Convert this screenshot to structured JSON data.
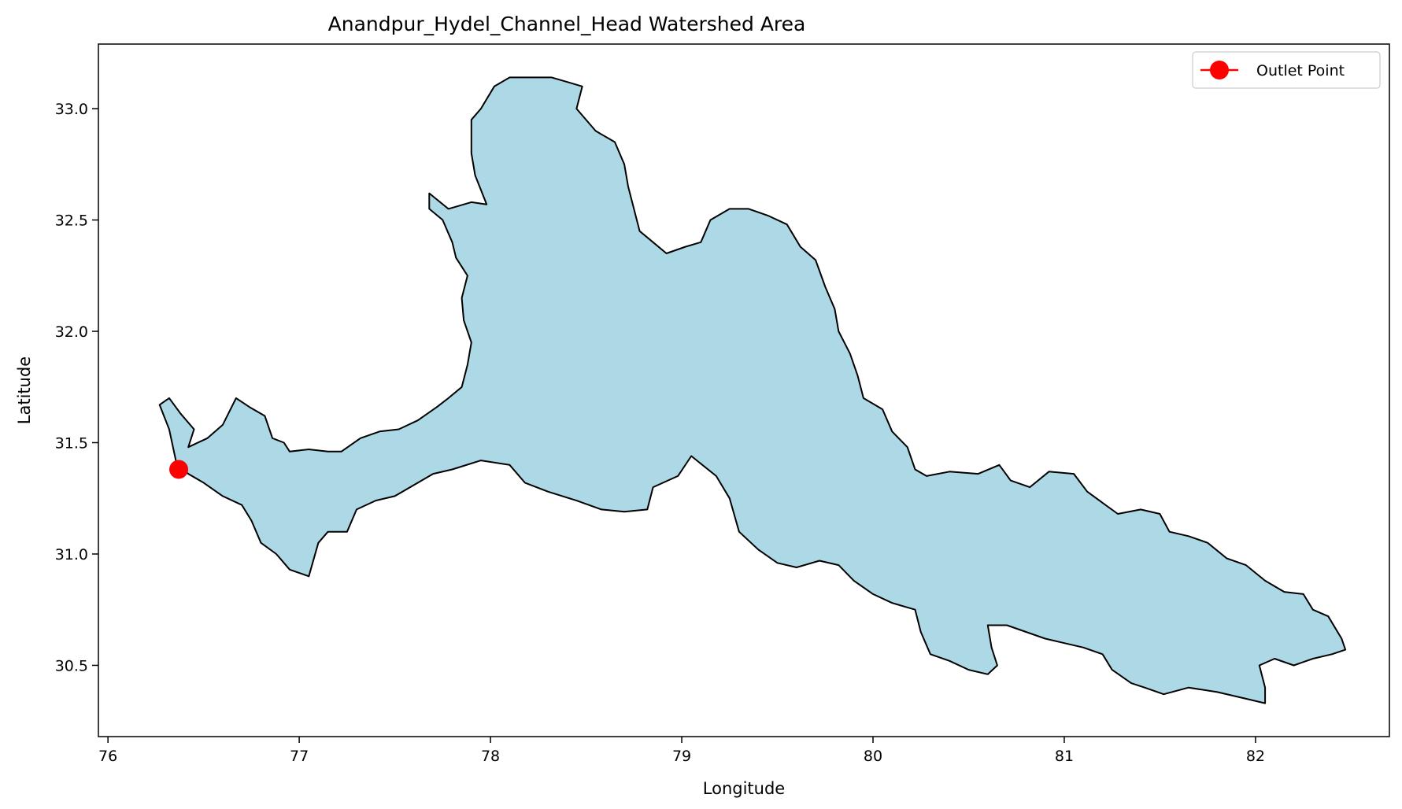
{
  "chart_data": {
    "type": "map",
    "title": "Anandpur_Hydel_Channel_Head Watershed Area",
    "xlabel": "Longitude",
    "ylabel": "Latitude",
    "xlim": [
      75.95,
      82.7
    ],
    "ylim": [
      30.18,
      33.29
    ],
    "x_ticks": [
      76,
      77,
      78,
      79,
      80,
      81,
      82
    ],
    "y_ticks": [
      30.5,
      31.0,
      31.5,
      32.0,
      32.5,
      33.0
    ],
    "y_tick_labels": [
      "30.5",
      "31.0",
      "31.5",
      "32.0",
      "32.5",
      "33.0"
    ],
    "grid": false,
    "legend": {
      "placement": "top-right",
      "entries": [
        "Outlet Point"
      ]
    },
    "watershed": {
      "fill": "#add8e6",
      "edge": "#000000",
      "boundary": [
        [
          76.27,
          31.67
        ],
        [
          76.32,
          31.7
        ],
        [
          76.38,
          31.63
        ],
        [
          76.45,
          31.56
        ],
        [
          76.42,
          31.48
        ],
        [
          76.52,
          31.52
        ],
        [
          76.6,
          31.58
        ],
        [
          76.67,
          31.7
        ],
        [
          76.74,
          31.66
        ],
        [
          76.82,
          31.62
        ],
        [
          76.86,
          31.52
        ],
        [
          76.92,
          31.5
        ],
        [
          76.95,
          31.46
        ],
        [
          77.05,
          31.47
        ],
        [
          77.15,
          31.46
        ],
        [
          77.22,
          31.46
        ],
        [
          77.32,
          31.52
        ],
        [
          77.42,
          31.55
        ],
        [
          77.52,
          31.56
        ],
        [
          77.62,
          31.6
        ],
        [
          77.72,
          31.66
        ],
        [
          77.78,
          31.7
        ],
        [
          77.85,
          31.75
        ],
        [
          77.88,
          31.85
        ],
        [
          77.9,
          31.95
        ],
        [
          77.86,
          32.05
        ],
        [
          77.85,
          32.15
        ],
        [
          77.88,
          32.25
        ],
        [
          77.82,
          32.33
        ],
        [
          77.8,
          32.4
        ],
        [
          77.75,
          32.5
        ],
        [
          77.68,
          32.55
        ],
        [
          77.68,
          32.62
        ],
        [
          77.78,
          32.55
        ],
        [
          77.9,
          32.58
        ],
        [
          77.98,
          32.57
        ],
        [
          77.92,
          32.7
        ],
        [
          77.9,
          32.8
        ],
        [
          77.9,
          32.95
        ],
        [
          77.95,
          33.0
        ],
        [
          78.02,
          33.1
        ],
        [
          78.1,
          33.14
        ],
        [
          78.22,
          33.14
        ],
        [
          78.32,
          33.14
        ],
        [
          78.4,
          33.12
        ],
        [
          78.48,
          33.1
        ],
        [
          78.45,
          33.0
        ],
        [
          78.55,
          32.9
        ],
        [
          78.65,
          32.85
        ],
        [
          78.7,
          32.75
        ],
        [
          78.72,
          32.65
        ],
        [
          78.75,
          32.55
        ],
        [
          78.78,
          32.45
        ],
        [
          78.85,
          32.4
        ],
        [
          78.92,
          32.35
        ],
        [
          79.02,
          32.38
        ],
        [
          79.1,
          32.4
        ],
        [
          79.15,
          32.5
        ],
        [
          79.25,
          32.55
        ],
        [
          79.35,
          32.55
        ],
        [
          79.45,
          32.52
        ],
        [
          79.55,
          32.48
        ],
        [
          79.62,
          32.38
        ],
        [
          79.7,
          32.32
        ],
        [
          79.75,
          32.2
        ],
        [
          79.8,
          32.1
        ],
        [
          79.82,
          32.0
        ],
        [
          79.88,
          31.9
        ],
        [
          79.92,
          31.8
        ],
        [
          79.95,
          31.7
        ],
        [
          80.05,
          31.65
        ],
        [
          80.1,
          31.55
        ],
        [
          80.18,
          31.48
        ],
        [
          80.22,
          31.38
        ],
        [
          80.28,
          31.35
        ],
        [
          80.4,
          31.37
        ],
        [
          80.55,
          31.36
        ],
        [
          80.66,
          31.4
        ],
        [
          80.72,
          31.33
        ],
        [
          80.82,
          31.3
        ],
        [
          80.92,
          31.37
        ],
        [
          81.05,
          31.36
        ],
        [
          81.12,
          31.28
        ],
        [
          81.2,
          31.23
        ],
        [
          81.28,
          31.18
        ],
        [
          81.4,
          31.2
        ],
        [
          81.5,
          31.18
        ],
        [
          81.55,
          31.1
        ],
        [
          81.65,
          31.08
        ],
        [
          81.75,
          31.05
        ],
        [
          81.85,
          30.98
        ],
        [
          81.95,
          30.95
        ],
        [
          82.05,
          30.88
        ],
        [
          82.15,
          30.83
        ],
        [
          82.25,
          30.82
        ],
        [
          82.3,
          30.75
        ],
        [
          82.38,
          30.72
        ],
        [
          82.45,
          30.62
        ],
        [
          82.47,
          30.57
        ],
        [
          82.4,
          30.55
        ],
        [
          82.3,
          30.53
        ],
        [
          82.2,
          30.5
        ],
        [
          82.1,
          30.53
        ],
        [
          82.02,
          30.5
        ],
        [
          82.05,
          30.4
        ],
        [
          82.05,
          30.33
        ],
        [
          81.95,
          30.35
        ],
        [
          81.8,
          30.38
        ],
        [
          81.65,
          30.4
        ],
        [
          81.52,
          30.37
        ],
        [
          81.42,
          30.4
        ],
        [
          81.35,
          30.42
        ],
        [
          81.25,
          30.48
        ],
        [
          81.2,
          30.55
        ],
        [
          81.1,
          30.58
        ],
        [
          81.0,
          30.6
        ],
        [
          80.9,
          30.62
        ],
        [
          80.8,
          30.65
        ],
        [
          80.7,
          30.68
        ],
        [
          80.6,
          30.68
        ],
        [
          80.62,
          30.58
        ],
        [
          80.65,
          30.5
        ],
        [
          80.6,
          30.46
        ],
        [
          80.5,
          30.48
        ],
        [
          80.4,
          30.52
        ],
        [
          80.3,
          30.55
        ],
        [
          80.25,
          30.65
        ],
        [
          80.22,
          30.75
        ],
        [
          80.1,
          30.78
        ],
        [
          80.0,
          30.82
        ],
        [
          79.9,
          30.88
        ],
        [
          79.82,
          30.95
        ],
        [
          79.72,
          30.97
        ],
        [
          79.6,
          30.94
        ],
        [
          79.5,
          30.96
        ],
        [
          79.4,
          31.02
        ],
        [
          79.3,
          31.1
        ],
        [
          79.25,
          31.25
        ],
        [
          79.18,
          31.35
        ],
        [
          79.05,
          31.44
        ],
        [
          78.98,
          31.35
        ],
        [
          78.85,
          31.3
        ],
        [
          78.82,
          31.2
        ],
        [
          78.7,
          31.19
        ],
        [
          78.58,
          31.2
        ],
        [
          78.45,
          31.24
        ],
        [
          78.3,
          31.28
        ],
        [
          78.18,
          31.32
        ],
        [
          78.1,
          31.4
        ],
        [
          77.95,
          31.42
        ],
        [
          77.8,
          31.38
        ],
        [
          77.7,
          31.36
        ],
        [
          77.58,
          31.3
        ],
        [
          77.5,
          31.26
        ],
        [
          77.4,
          31.24
        ],
        [
          77.3,
          31.2
        ],
        [
          77.25,
          31.1
        ],
        [
          77.15,
          31.1
        ],
        [
          77.1,
          31.05
        ],
        [
          77.05,
          30.9
        ],
        [
          76.95,
          30.93
        ],
        [
          76.88,
          31.0
        ],
        [
          76.8,
          31.05
        ],
        [
          76.75,
          31.15
        ],
        [
          76.7,
          31.22
        ],
        [
          76.6,
          31.26
        ],
        [
          76.5,
          31.32
        ],
        [
          76.42,
          31.36
        ],
        [
          76.36,
          31.4
        ],
        [
          76.32,
          31.56
        ],
        [
          76.27,
          31.67
        ]
      ]
    },
    "series": [
      {
        "name": "Outlet Point",
        "type": "point",
        "color": "#ff0000",
        "x": [
          76.37
        ],
        "y": [
          31.38
        ]
      }
    ]
  }
}
